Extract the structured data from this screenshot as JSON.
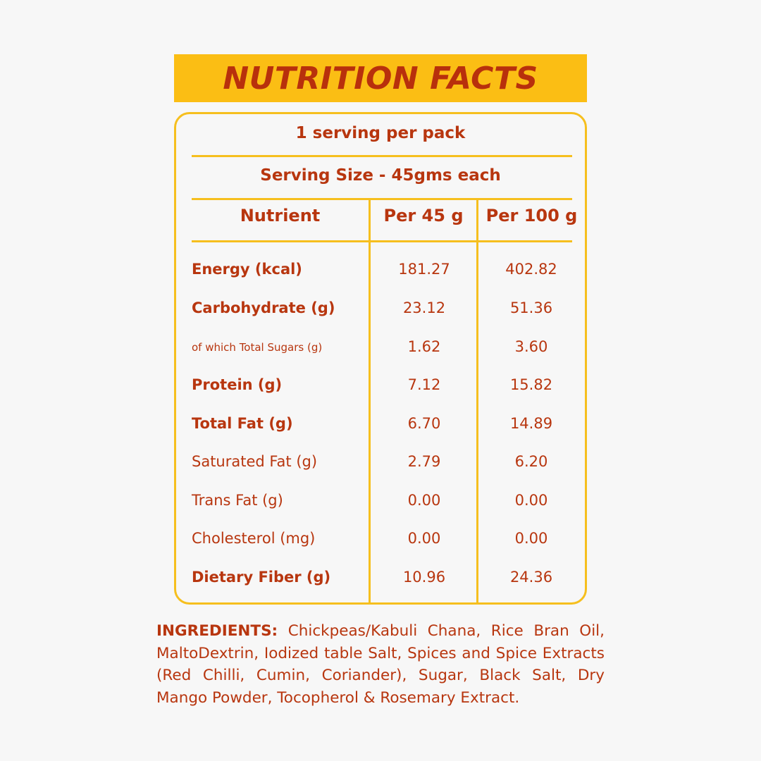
{
  "title": "NUTRITION FACTS",
  "servings_per_pack": "1 serving per pack",
  "serving_size": "Serving Size - 45gms each",
  "headers": {
    "nutrient": "Nutrient",
    "per_serving": "Per 45 g",
    "per_100": "Per 100 g"
  },
  "rows": [
    {
      "name": "Energy (kcal)",
      "per_serving": "181.27",
      "per_100": "402.82"
    },
    {
      "name": "Carbohydrate (g)",
      "per_serving": "23.12",
      "per_100": "51.36"
    },
    {
      "name": "of which Total Sugars (g)",
      "per_serving": "1.62",
      "per_100": "3.60"
    },
    {
      "name": "Protein (g)",
      "per_serving": "7.12",
      "per_100": "15.82"
    },
    {
      "name": "Total Fat (g)",
      "per_serving": "6.70",
      "per_100": "14.89"
    },
    {
      "name": "Saturated Fat (g)",
      "per_serving": "2.79",
      "per_100": "6.20"
    },
    {
      "name": "Trans Fat (g)",
      "per_serving": "0.00",
      "per_100": "0.00"
    },
    {
      "name": "Cholesterol (mg)",
      "per_serving": "0.00",
      "per_100": "0.00"
    },
    {
      "name": "Dietary Fiber (g)",
      "per_serving": "10.96",
      "per_100": "24.36"
    }
  ],
  "ingredients": {
    "label": "INGREDIENTS:",
    "text": "Chickpeas/Kabuli Chana, Rice Bran Oil, MaltoDextrin, Iodized table Salt, Spices and Spice Extracts (Red Chilli, Cumin, Coriander), Sugar, Black Salt, Dry Mango Powder, Tocopherol & Rosemary Extract."
  },
  "colors": {
    "accent": "#fbbe14",
    "text": "#b8360f",
    "background": "#f7f7f7"
  }
}
